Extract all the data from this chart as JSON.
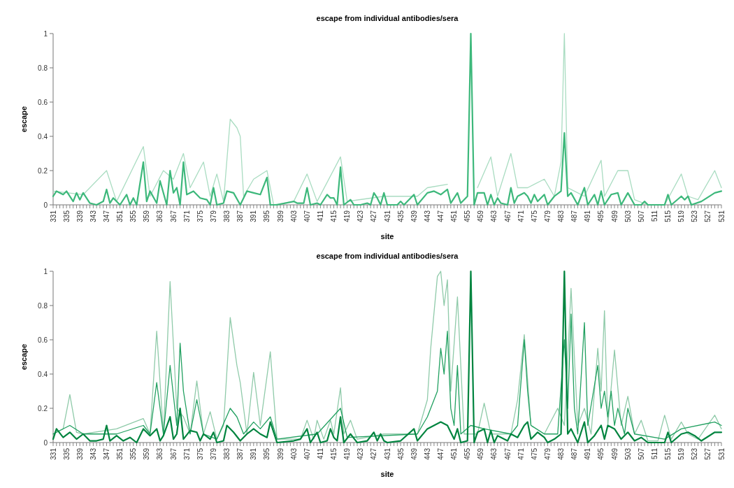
{
  "chart_data": [
    {
      "type": "line",
      "title": "escape from individual antibodies/sera",
      "xlabel": "site",
      "ylabel": "escape",
      "xlim": [
        331,
        531
      ],
      "ylim": [
        0,
        1
      ],
      "yticks": [
        0,
        0.2,
        0.4,
        0.6,
        0.8,
        1
      ],
      "xticks": [
        331,
        {
          "value": 332,
          "label": null
        },
        {
          "value": 333,
          "label": null
        },
        {
          "value": 334,
          "label": null
        },
        335,
        {
          "value": 336,
          "label": null
        },
        {
          "value": 337,
          "label": null
        },
        {
          "value": 338,
          "label": null
        },
        339,
        {
          "value": 340,
          "label": null
        },
        {
          "value": 341,
          "label": null
        },
        {
          "value": 342,
          "label": null
        },
        343,
        {
          "value": 344,
          "label": null
        },
        {
          "value": 345,
          "label": null
        },
        {
          "value": 346,
          "label": null
        },
        347,
        {
          "value": 348,
          "label": null
        },
        {
          "value": 349,
          "label": null
        },
        {
          "value": 350,
          "label": null
        },
        351,
        {
          "value": 352,
          "label": null
        },
        {
          "value": 353,
          "label": null
        },
        {
          "value": 354,
          "label": null
        },
        355,
        {
          "value": 356,
          "label": null
        },
        {
          "value": 357,
          "label": null
        },
        {
          "value": 358,
          "label": null
        },
        359,
        {
          "value": 360,
          "label": null
        },
        {
          "value": 361,
          "label": null
        },
        {
          "value": 362,
          "label": null
        },
        363,
        {
          "value": 364,
          "label": null
        },
        {
          "value": 365,
          "label": null
        },
        {
          "value": 366,
          "label": null
        },
        367,
        {
          "value": 368,
          "label": null
        },
        {
          "value": 369,
          "label": null
        },
        {
          "value": 370,
          "label": null
        },
        371,
        {
          "value": 372,
          "label": null
        },
        {
          "value": 373,
          "label": null
        },
        {
          "value": 374,
          "label": null
        },
        375,
        {
          "value": 376,
          "label": null
        },
        {
          "value": 377,
          "label": null
        },
        {
          "value": 378,
          "label": null
        },
        379,
        {
          "value": 380,
          "label": null
        },
        {
          "value": 381,
          "label": null
        },
        {
          "value": 382,
          "label": null
        },
        383,
        {
          "value": 384,
          "label": null
        },
        {
          "value": 385,
          "label": null
        },
        {
          "value": 386,
          "label": null
        },
        387,
        {
          "value": 388,
          "label": null
        },
        {
          "value": 389,
          "label": null
        },
        {
          "value": 390,
          "label": null
        },
        391,
        {
          "value": 392,
          "label": null
        },
        {
          "value": 393,
          "label": null
        },
        {
          "value": 394,
          "label": null
        },
        395,
        {
          "value": 396,
          "label": null
        },
        {
          "value": 397,
          "label": null
        },
        {
          "value": 398,
          "label": null
        },
        399,
        {
          "value": 400,
          "label": null
        },
        {
          "value": 401,
          "label": null
        },
        {
          "value": 402,
          "label": null
        },
        403,
        {
          "value": 404,
          "label": null
        },
        {
          "value": 405,
          "label": null
        },
        {
          "value": 406,
          "label": null
        },
        407,
        {
          "value": 408,
          "label": null
        },
        {
          "value": 409,
          "label": null
        },
        {
          "value": 410,
          "label": null
        },
        411,
        {
          "value": 412,
          "label": null
        },
        {
          "value": 413,
          "label": null
        },
        {
          "value": 414,
          "label": null
        },
        415,
        {
          "value": 416,
          "label": null
        },
        {
          "value": 417,
          "label": null
        },
        {
          "value": 418,
          "label": null
        },
        419,
        {
          "value": 420,
          "label": null
        },
        {
          "value": 421,
          "label": null
        },
        {
          "value": 422,
          "label": null
        },
        423,
        {
          "value": 424,
          "label": null
        },
        {
          "value": 425,
          "label": null
        },
        {
          "value": 426,
          "label": null
        },
        427,
        {
          "value": 428,
          "label": null
        },
        {
          "value": 429,
          "label": null
        },
        {
          "value": 430,
          "label": null
        },
        431,
        {
          "value": 432,
          "label": null
        },
        {
          "value": 433,
          "label": null
        },
        {
          "value": 434,
          "label": null
        },
        435,
        {
          "value": 436,
          "label": null
        },
        {
          "value": 437,
          "label": null
        },
        {
          "value": 438,
          "label": null
        },
        439,
        {
          "value": 440,
          "label": null
        },
        {
          "value": 441,
          "label": null
        },
        {
          "value": 442,
          "label": null
        },
        443,
        {
          "value": 444,
          "label": null
        },
        {
          "value": 445,
          "label": null
        },
        {
          "value": 446,
          "label": null
        },
        447,
        {
          "value": 448,
          "label": null
        },
        {
          "value": 449,
          "label": null
        },
        {
          "value": 450,
          "label": null
        },
        451,
        {
          "value": 452,
          "label": null
        },
        {
          "value": 453,
          "label": null
        },
        {
          "value": 454,
          "label": null
        },
        455,
        {
          "value": 456,
          "label": null
        },
        {
          "value": 457,
          "label": null
        },
        {
          "value": 458,
          "label": null
        },
        459,
        {
          "value": 460,
          "label": null
        },
        {
          "value": 461,
          "label": null
        },
        {
          "value": 462,
          "label": null
        },
        463,
        {
          "value": 464,
          "label": null
        },
        {
          "value": 465,
          "label": null
        },
        {
          "value": 466,
          "label": null
        },
        467,
        {
          "value": 468,
          "label": null
        },
        {
          "value": 469,
          "label": null
        },
        {
          "value": 470,
          "label": null
        },
        471,
        {
          "value": 472,
          "label": null
        },
        {
          "value": 473,
          "label": null
        },
        {
          "value": 474,
          "label": null
        },
        475,
        {
          "value": 476,
          "label": null
        },
        {
          "value": 477,
          "label": null
        },
        {
          "value": 478,
          "label": null
        },
        479,
        {
          "value": 480,
          "label": null
        },
        {
          "value": 481,
          "label": null
        },
        {
          "value": 482,
          "label": null
        },
        483,
        {
          "value": 484,
          "label": null
        },
        {
          "value": 485,
          "label": null
        },
        {
          "value": 486,
          "label": null
        },
        487,
        {
          "value": 488,
          "label": null
        },
        {
          "value": 489,
          "label": null
        },
        {
          "value": 490,
          "label": null
        },
        491,
        {
          "value": 492,
          "label": null
        },
        {
          "value": 493,
          "label": null
        },
        {
          "value": 494,
          "label": null
        },
        495,
        {
          "value": 496,
          "label": null
        },
        {
          "value": 497,
          "label": null
        },
        {
          "value": 498,
          "label": null
        },
        499,
        {
          "value": 500,
          "label": null
        },
        {
          "value": 501,
          "label": null
        },
        {
          "value": 502,
          "label": null
        },
        503,
        {
          "value": 504,
          "label": null
        },
        {
          "value": 505,
          "label": null
        },
        {
          "value": 506,
          "label": null
        },
        507,
        {
          "value": 508,
          "label": null
        },
        {
          "value": 509,
          "label": null
        },
        {
          "value": 510,
          "label": null
        },
        511,
        {
          "value": 512,
          "label": null
        },
        {
          "value": 513,
          "label": null
        },
        {
          "value": 514,
          "label": null
        },
        515,
        {
          "value": 516,
          "label": null
        },
        {
          "value": 517,
          "label": null
        },
        {
          "value": 518,
          "label": null
        },
        519,
        {
          "value": 520,
          "label": null
        },
        {
          "value": 521,
          "label": null
        },
        {
          "value": 522,
          "label": null
        },
        523,
        {
          "value": 524,
          "label": null
        },
        {
          "value": 525,
          "label": null
        },
        {
          "value": 526,
          "label": null
        },
        527,
        {
          "value": 528,
          "label": null
        },
        {
          "value": 529,
          "label": null
        },
        {
          "value": 530,
          "label": null
        },
        531
      ],
      "series": [
        {
          "color": "#a9dcc1",
          "x": [
            331,
            340,
            347,
            350,
            358,
            360,
            364,
            367,
            370,
            372,
            376,
            378,
            380,
            382,
            384,
            386,
            387,
            388,
            391,
            395,
            397,
            403,
            407,
            410,
            417,
            419,
            430,
            440,
            443,
            449,
            456,
            458,
            462,
            464,
            468,
            470,
            473,
            478,
            481,
            483,
            484,
            485,
            487,
            490,
            495,
            496,
            500,
            503,
            505,
            509,
            514,
            519,
            521,
            524,
            529,
            531
          ],
          "values": [
            0.08,
            0.06,
            0.2,
            0.02,
            0.34,
            0.05,
            0.2,
            0.15,
            0.3,
            0.1,
            0.25,
            0.05,
            0.18,
            0.02,
            0.5,
            0.45,
            0.4,
            0.05,
            0.15,
            0.2,
            0,
            0.02,
            0.18,
            0.02,
            0.28,
            0.02,
            0.05,
            0.05,
            0.1,
            0.12,
            null,
            0.1,
            0.28,
            0.05,
            0.3,
            0.1,
            0.1,
            0.15,
            0.05,
            0.25,
            1,
            0.1,
            0.08,
            0.05,
            0.26,
            0.05,
            0.2,
            0.2,
            0.03,
            0,
            0,
            0.18,
            0.05,
            0.03,
            0.2,
            0.1
          ]
        },
        {
          "color": "#3db87b",
          "x": [
            331,
            332,
            334,
            335,
            337,
            338,
            339,
            340,
            342,
            344,
            346,
            347,
            348,
            349,
            351,
            353,
            354,
            355,
            356,
            358,
            359,
            360,
            362,
            363,
            365,
            366,
            367,
            368,
            369,
            370,
            371,
            373,
            375,
            377,
            378,
            379,
            380,
            382,
            383,
            385,
            387,
            389,
            391,
            393,
            395,
            396,
            398,
            403,
            404,
            406,
            407,
            408,
            410,
            411,
            413,
            414,
            415,
            416,
            417,
            418,
            420,
            421,
            423,
            425,
            426,
            427,
            428,
            429,
            430,
            431,
            434,
            435,
            436,
            439,
            440,
            443,
            445,
            447,
            449,
            450,
            452,
            453,
            455,
            456,
            457,
            458,
            460,
            461,
            462,
            463,
            464,
            465,
            467,
            468,
            469,
            470,
            472,
            473,
            474,
            475,
            476,
            478,
            479,
            481,
            483,
            484,
            485,
            486,
            488,
            490,
            491,
            493,
            494,
            495,
            496,
            498,
            500,
            501,
            503,
            505,
            507,
            508,
            509,
            514,
            515,
            516,
            519,
            520,
            521,
            522,
            525,
            529,
            531
          ],
          "values": [
            0.05,
            0.08,
            0.06,
            0.08,
            0.02,
            0.07,
            0.03,
            0.07,
            0.01,
            0,
            0.02,
            0.09,
            0.01,
            0.04,
            0,
            0.06,
            0,
            0.04,
            0,
            0.25,
            0.02,
            0.08,
            0.01,
            0.14,
            0,
            0.2,
            0.07,
            0.1,
            0,
            0.25,
            0.06,
            0.08,
            0.04,
            0.03,
            0,
            0.1,
            0,
            0.01,
            0.08,
            0.07,
            0,
            0.08,
            0.07,
            0.06,
            0.16,
            0,
            0,
            0.02,
            0.01,
            0.01,
            0.1,
            0,
            0.01,
            0,
            0.06,
            0.04,
            0.04,
            0,
            0.22,
            0,
            0.03,
            0,
            0,
            0.01,
            0,
            0.07,
            0.04,
            0,
            0.07,
            0,
            0,
            0.02,
            0,
            0.06,
            0,
            0.07,
            0.08,
            0.06,
            0.09,
            0.01,
            0.07,
            0.01,
            0.05,
            1,
            0,
            0.07,
            0.07,
            0,
            0.06,
            0,
            0.04,
            0.01,
            0,
            0.1,
            0.01,
            0.05,
            0.07,
            0.05,
            0.01,
            0.06,
            0.02,
            0.06,
            0,
            0.05,
            0.08,
            0.42,
            0.05,
            0.07,
            0,
            0.1,
            0,
            0.06,
            0,
            0.08,
            0,
            0.06,
            0.07,
            0,
            0.07,
            0,
            0,
            0.02,
            0,
            0,
            0.06,
            0,
            0.05,
            0.03,
            0.05,
            0,
            0.02,
            0.07,
            0.08
          ]
        }
      ]
    },
    {
      "type": "line",
      "title": "escape from individual antibodies/sera",
      "xlabel": "site",
      "ylabel": "escape",
      "xlim": [
        331,
        531
      ],
      "ylim": [
        0,
        1
      ],
      "yticks": [
        0,
        0.2,
        0.4,
        0.6,
        0.8,
        1
      ],
      "xticks": [
        331,
        {
          "value": 332,
          "label": null
        },
        {
          "value": 333,
          "label": null
        },
        {
          "value": 334,
          "label": null
        },
        335,
        {
          "value": 336,
          "label": null
        },
        {
          "value": 337,
          "label": null
        },
        {
          "value": 338,
          "label": null
        },
        339,
        {
          "value": 340,
          "label": null
        },
        {
          "value": 341,
          "label": null
        },
        {
          "value": 342,
          "label": null
        },
        343,
        {
          "value": 344,
          "label": null
        },
        {
          "value": 345,
          "label": null
        },
        {
          "value": 346,
          "label": null
        },
        347,
        {
          "value": 348,
          "label": null
        },
        {
          "value": 349,
          "label": null
        },
        {
          "value": 350,
          "label": null
        },
        351,
        {
          "value": 352,
          "label": null
        },
        {
          "value": 353,
          "label": null
        },
        {
          "value": 354,
          "label": null
        },
        355,
        {
          "value": 356,
          "label": null
        },
        {
          "value": 357,
          "label": null
        },
        {
          "value": 358,
          "label": null
        },
        359,
        {
          "value": 360,
          "label": null
        },
        {
          "value": 361,
          "label": null
        },
        {
          "value": 362,
          "label": null
        },
        363,
        {
          "value": 364,
          "label": null
        },
        {
          "value": 365,
          "label": null
        },
        {
          "value": 366,
          "label": null
        },
        367,
        {
          "value": 368,
          "label": null
        },
        {
          "value": 369,
          "label": null
        },
        {
          "value": 370,
          "label": null
        },
        371,
        {
          "value": 372,
          "label": null
        },
        {
          "value": 373,
          "label": null
        },
        {
          "value": 374,
          "label": null
        },
        375,
        {
          "value": 376,
          "label": null
        },
        {
          "value": 377,
          "label": null
        },
        {
          "value": 378,
          "label": null
        },
        379,
        {
          "value": 380,
          "label": null
        },
        {
          "value": 381,
          "label": null
        },
        {
          "value": 382,
          "label": null
        },
        383,
        {
          "value": 384,
          "label": null
        },
        {
          "value": 385,
          "label": null
        },
        {
          "value": 386,
          "label": null
        },
        387,
        {
          "value": 388,
          "label": null
        },
        {
          "value": 389,
          "label": null
        },
        {
          "value": 390,
          "label": null
        },
        391,
        {
          "value": 392,
          "label": null
        },
        {
          "value": 393,
          "label": null
        },
        {
          "value": 394,
          "label": null
        },
        395,
        {
          "value": 396,
          "label": null
        },
        {
          "value": 397,
          "label": null
        },
        {
          "value": 398,
          "label": null
        },
        399,
        {
          "value": 400,
          "label": null
        },
        {
          "value": 401,
          "label": null
        },
        {
          "value": 402,
          "label": null
        },
        403,
        {
          "value": 404,
          "label": null
        },
        {
          "value": 405,
          "label": null
        },
        {
          "value": 406,
          "label": null
        },
        407,
        {
          "value": 408,
          "label": null
        },
        {
          "value": 409,
          "label": null
        },
        {
          "value": 410,
          "label": null
        },
        411,
        {
          "value": 412,
          "label": null
        },
        {
          "value": 413,
          "label": null
        },
        {
          "value": 414,
          "label": null
        },
        415,
        {
          "value": 416,
          "label": null
        },
        {
          "value": 417,
          "label": null
        },
        {
          "value": 418,
          "label": null
        },
        419,
        {
          "value": 420,
          "label": null
        },
        {
          "value": 421,
          "label": null
        },
        {
          "value": 422,
          "label": null
        },
        423,
        {
          "value": 424,
          "label": null
        },
        {
          "value": 425,
          "label": null
        },
        {
          "value": 426,
          "label": null
        },
        427,
        {
          "value": 428,
          "label": null
        },
        {
          "value": 429,
          "label": null
        },
        {
          "value": 430,
          "label": null
        },
        431,
        {
          "value": 432,
          "label": null
        },
        {
          "value": 433,
          "label": null
        },
        {
          "value": 434,
          "label": null
        },
        435,
        {
          "value": 436,
          "label": null
        },
        {
          "value": 437,
          "label": null
        },
        {
          "value": 438,
          "label": null
        },
        439,
        {
          "value": 440,
          "label": null
        },
        {
          "value": 441,
          "label": null
        },
        {
          "value": 442,
          "label": null
        },
        443,
        {
          "value": 444,
          "label": null
        },
        {
          "value": 445,
          "label": null
        },
        {
          "value": 446,
          "label": null
        },
        447,
        {
          "value": 448,
          "label": null
        },
        {
          "value": 449,
          "label": null
        },
        {
          "value": 450,
          "label": null
        },
        451,
        {
          "value": 452,
          "label": null
        },
        {
          "value": 453,
          "label": null
        },
        {
          "value": 454,
          "label": null
        },
        455,
        {
          "value": 456,
          "label": null
        },
        {
          "value": 457,
          "label": null
        },
        {
          "value": 458,
          "label": null
        },
        459,
        {
          "value": 460,
          "label": null
        },
        {
          "value": 461,
          "label": null
        },
        {
          "value": 462,
          "label": null
        },
        463,
        {
          "value": 464,
          "label": null
        },
        {
          "value": 465,
          "label": null
        },
        {
          "value": 466,
          "label": null
        },
        467,
        {
          "value": 468,
          "label": null
        },
        {
          "value": 469,
          "label": null
        },
        {
          "value": 470,
          "label": null
        },
        471,
        {
          "value": 472,
          "label": null
        },
        {
          "value": 473,
          "label": null
        },
        {
          "value": 474,
          "label": null
        },
        475,
        {
          "value": 476,
          "label": null
        },
        {
          "value": 477,
          "label": null
        },
        {
          "value": 478,
          "label": null
        },
        479,
        {
          "value": 480,
          "label": null
        },
        {
          "value": 481,
          "label": null
        },
        {
          "value": 482,
          "label": null
        },
        483,
        {
          "value": 484,
          "label": null
        },
        {
          "value": 485,
          "label": null
        },
        {
          "value": 486,
          "label": null
        },
        487,
        {
          "value": 488,
          "label": null
        },
        {
          "value": 489,
          "label": null
        },
        {
          "value": 490,
          "label": null
        },
        491,
        {
          "value": 492,
          "label": null
        },
        {
          "value": 493,
          "label": null
        },
        {
          "value": 494,
          "label": null
        },
        495,
        {
          "value": 496,
          "label": null
        },
        {
          "value": 497,
          "label": null
        },
        {
          "value": 498,
          "label": null
        },
        499,
        {
          "value": 500,
          "label": null
        },
        {
          "value": 501,
          "label": null
        },
        {
          "value": 502,
          "label": null
        },
        503,
        {
          "value": 504,
          "label": null
        },
        {
          "value": 505,
          "label": null
        },
        {
          "value": 506,
          "label": null
        },
        507,
        {
          "value": 508,
          "label": null
        },
        {
          "value": 509,
          "label": null
        },
        {
          "value": 510,
          "label": null
        },
        511,
        {
          "value": 512,
          "label": null
        },
        {
          "value": 513,
          "label": null
        },
        {
          "value": 514,
          "label": null
        },
        515,
        {
          "value": 516,
          "label": null
        },
        {
          "value": 517,
          "label": null
        },
        {
          "value": 518,
          "label": null
        },
        519,
        {
          "value": 520,
          "label": null
        },
        {
          "value": 521,
          "label": null
        },
        {
          "value": 522,
          "label": null
        },
        523,
        {
          "value": 524,
          "label": null
        },
        {
          "value": 525,
          "label": null
        },
        {
          "value": 526,
          "label": null
        },
        527,
        {
          "value": 528,
          "label": null
        },
        {
          "value": 529,
          "label": null
        },
        {
          "value": 530,
          "label": null
        },
        531
      ],
      "series": [
        {
          "color": "#8fcaa9",
          "x": [
            331,
            334,
            336,
            338,
            340,
            350,
            358,
            360,
            362,
            364,
            366,
            368,
            370,
            372,
            374,
            376,
            378,
            380,
            382,
            384,
            386,
            387,
            389,
            391,
            393,
            396,
            398,
            405,
            407,
            409,
            410,
            412,
            414,
            415,
            417,
            418,
            420,
            422,
            430,
            440,
            443,
            444,
            446,
            447,
            448,
            449,
            450,
            452,
            454,
            458,
            460,
            462,
            468,
            470,
            472,
            474,
            478,
            482,
            484,
            486,
            488,
            490,
            492,
            494,
            495,
            496,
            497,
            499,
            501,
            503,
            505,
            507,
            509,
            512,
            514,
            516,
            519,
            521,
            524,
            529,
            531
          ],
          "values": [
            0.05,
            0.08,
            0.28,
            0.06,
            0.05,
            0.08,
            0.14,
            0.05,
            0.65,
            0.05,
            0.94,
            0.2,
            0.15,
            0.05,
            0.36,
            0.05,
            0.18,
            0.02,
            0.1,
            0.73,
            0.45,
            0.35,
            0.05,
            0.41,
            0.1,
            0.53,
            0.02,
            0.02,
            0.13,
            0.02,
            0.13,
            0.02,
            0.13,
            0.05,
            0.32,
            0.05,
            0.13,
            0.02,
            0.05,
            0.05,
            0.25,
            0.55,
            0.97,
            1,
            0.8,
            0.95,
            0.3,
            0.85,
            0.05,
            0.05,
            0.23,
            0.05,
            0.05,
            0.25,
            0.63,
            0.1,
            0.05,
            0.2,
            0.1,
            0.9,
            0.1,
            0.2,
            0.05,
            0.55,
            0.3,
            0.77,
            0.1,
            0.54,
            0.1,
            0.27,
            0.05,
            0.13,
            0.01,
            0.01,
            0.16,
            0.02,
            0.12,
            0.05,
            0.02,
            0.16,
            0.08
          ]
        },
        {
          "color": "#21a060",
          "x": [
            331,
            336,
            340,
            350,
            358,
            360,
            362,
            364,
            366,
            368,
            369,
            370,
            372,
            374,
            376,
            380,
            384,
            386,
            388,
            391,
            393,
            396,
            398,
            410,
            417,
            419,
            440,
            443,
            446,
            447,
            448,
            449,
            450,
            451,
            452,
            453,
            456,
            460,
            468,
            470,
            472,
            473,
            474,
            478,
            482,
            484,
            485,
            486,
            487,
            488,
            490,
            491,
            494,
            495,
            496,
            497,
            498,
            499,
            500,
            502,
            503,
            505,
            514,
            519,
            529,
            531
          ],
          "values": [
            0.05,
            0.1,
            0.05,
            0.05,
            0.1,
            0.05,
            0.35,
            0.05,
            0.45,
            0.1,
            0.58,
            0.3,
            0.05,
            0.25,
            0.05,
            0.02,
            0.2,
            0.15,
            0.05,
            0.12,
            0.08,
            0.15,
            0.02,
            0.05,
            0.2,
            0.03,
            0.05,
            0.15,
            0.3,
            0.55,
            0.4,
            0.65,
            0.2,
            0.1,
            0.45,
            0.05,
            0.1,
            0.08,
            0.05,
            0.1,
            0.6,
            0.3,
            0.1,
            0.05,
            0.05,
            0.6,
            0.2,
            0.75,
            0.2,
            0.05,
            0.7,
            0.1,
            0.45,
            0.2,
            0.3,
            0.15,
            0.3,
            0.1,
            0.2,
            0.05,
            0.2,
            0.05,
            0.02,
            0.08,
            0.12,
            0.1
          ]
        },
        {
          "color": "#00843f",
          "x": [
            331,
            332,
            334,
            336,
            338,
            340,
            342,
            344,
            346,
            347,
            348,
            350,
            352,
            354,
            356,
            358,
            360,
            362,
            363,
            364,
            366,
            367,
            368,
            369,
            370,
            372,
            374,
            375,
            376,
            378,
            379,
            380,
            382,
            383,
            385,
            387,
            389,
            391,
            393,
            395,
            396,
            398,
            403,
            405,
            407,
            408,
            410,
            411,
            413,
            414,
            415,
            416,
            417,
            418,
            420,
            422,
            425,
            427,
            428,
            429,
            430,
            431,
            435,
            439,
            440,
            443,
            445,
            447,
            449,
            451,
            452,
            453,
            455,
            456,
            457,
            458,
            460,
            461,
            462,
            463,
            464,
            467,
            468,
            470,
            472,
            473,
            474,
            476,
            478,
            479,
            481,
            483,
            484,
            485,
            486,
            488,
            490,
            491,
            493,
            495,
            496,
            497,
            499,
            501,
            503,
            505,
            507,
            509,
            514,
            515,
            516,
            519,
            521,
            523,
            525,
            529,
            531
          ],
          "values": [
            0.02,
            0.08,
            0.03,
            0.06,
            0.02,
            0.05,
            0.01,
            0.01,
            0.02,
            0.1,
            0.01,
            0.04,
            0.01,
            0.03,
            0,
            0.08,
            0.04,
            0.08,
            0.01,
            0.04,
            0.15,
            0.02,
            0.05,
            0.2,
            0.02,
            0.07,
            0.06,
            0.01,
            0.05,
            0.02,
            0.06,
            0,
            0.01,
            0.1,
            0.06,
            0.01,
            0.05,
            0.08,
            0.05,
            0.03,
            0.12,
            0,
            0.01,
            0.02,
            0.08,
            0,
            0.06,
            0,
            0.01,
            0.08,
            0.03,
            0.01,
            0.15,
            0,
            0.05,
            0,
            0.01,
            0.06,
            0.01,
            0.05,
            0.01,
            0,
            0.01,
            0.08,
            0.01,
            0.08,
            0.1,
            0.12,
            0.1,
            0.02,
            0.08,
            0,
            0.01,
            1,
            0,
            0.06,
            0.08,
            0,
            0.07,
            0,
            0.04,
            0.01,
            0.05,
            0.03,
            0.1,
            0.12,
            0.02,
            0.06,
            0.03,
            0,
            0.02,
            0.05,
            1,
            0.05,
            0.08,
            0,
            0.12,
            0,
            0.04,
            0.1,
            0.02,
            0.1,
            0.08,
            0.02,
            0.06,
            0.01,
            0.03,
            0,
            0,
            0.06,
            0,
            0.05,
            0.06,
            0.04,
            0.01,
            0.06,
            0.06
          ]
        }
      ]
    }
  ]
}
